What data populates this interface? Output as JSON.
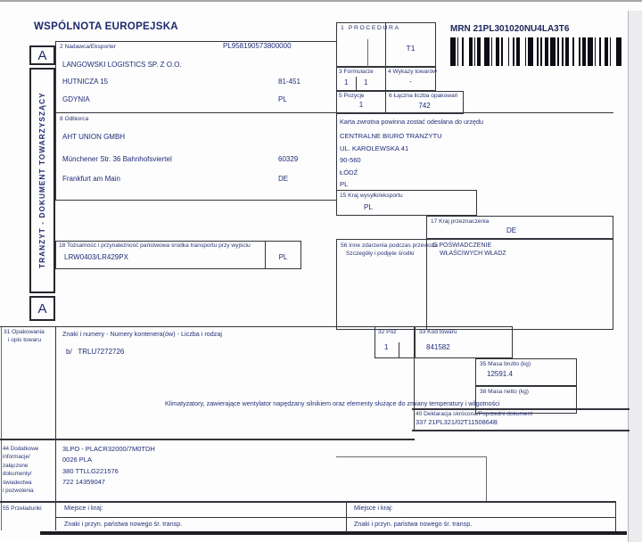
{
  "page": {
    "community_title": "WSPÓLNOTA EUROPEJSKA"
  },
  "sidebar": {
    "a_top": "A",
    "title": "TRANZYT - DOKUMENT TOWARZYSZĄCY",
    "a_bottom": "A"
  },
  "mrn": {
    "label": "MRN",
    "value": "21PL301020NU4LA3T6"
  },
  "box1": {
    "label": "1 PROCEDURA",
    "value": "T1"
  },
  "box2": {
    "label": "2 Nadawca/Eksporter",
    "eori": "PL958190573800000",
    "name": "LANGOWSKI LOGISTICS SP. Z O.O.",
    "street": "HUTNICZA 15",
    "postal": "81-451",
    "city": "GDYNIA",
    "country": "PL"
  },
  "box3": {
    "label": "3 Formularze",
    "value1": "1",
    "value2": "1"
  },
  "box4": {
    "label": "4 Wykazy towarów",
    "value": "-"
  },
  "box5": {
    "label": "5 Pozycje",
    "value": "1"
  },
  "box6": {
    "label": "6 Łączna liczba opakowań",
    "value": "742"
  },
  "box8": {
    "label": "8 Odbiorca",
    "name": "AHT UNION GMBH",
    "street": "Münchener Str. 36 Bahnhofsviertel",
    "postal": "60329",
    "city": "Frankfurt am Main",
    "country": "DE"
  },
  "return_office": {
    "note": "Karta zwrotna powinna zostać odesłana do urzędu",
    "line1": "CENTRALNE BIURO TRANZYTU",
    "line2": "UL. KAROLEWSKA 41",
    "line3": "90-560",
    "line4": "ŁÓDŹ",
    "line5": "PL"
  },
  "box15": {
    "label": "15 Kraj wysyłki/eksportu",
    "value": "PL"
  },
  "box17": {
    "label": "17 Kraj przeznaczenia",
    "value": "DE"
  },
  "box18": {
    "label": "18 Tożsamość i przynależność państwowa środka transportu przy wyjściu",
    "value": "LRW0403/LR429PX",
    "country": "PL"
  },
  "box56": {
    "label": "56 Inne zdarzenia podczas przewozu",
    "sublabel": "Szczegóły i podjęte środki"
  },
  "boxG": {
    "label": "G POŚWIADCZENIE",
    "sublabel": "WŁAŚCIWYCH WŁADZ"
  },
  "box31": {
    "label_line1": "31 Opakowania",
    "label_line2": "i opis towaru",
    "header": "Znaki i numery - Numery kontenera(ów) - Liczba i rodzaj",
    "marks": "b/",
    "container": "TRLU7272726",
    "description": "Klimatyzatory, zawierające wentylator napędzany silnikiem oraz elementy służące do zmiany temperatury i wilgotności"
  },
  "box32": {
    "label": "32 Poz",
    "value": "1"
  },
  "box33": {
    "label": "33 Kod towaru",
    "value": "841582"
  },
  "box35": {
    "label": "35 Masa brutto (kg)",
    "value": "12591.4"
  },
  "box38": {
    "label": "38 Masa netto (kg)",
    "value": ""
  },
  "box40": {
    "label": "40 Deklaracja skrócona/Poprzedni dokument",
    "value": "337 21PL321/02T1150864B"
  },
  "box44": {
    "label_line1": "44 Dodatkowe",
    "label_line2": "informacje/",
    "label_line3": "załączone",
    "label_line4": "dokumenty/",
    "label_line5": "świadectwa",
    "label_line6": "i pozwolenia",
    "doc_line1": "3LPO - PLACR32000/7M0TDH",
    "doc_line2": "0026 PLA",
    "doc_line3": "380 TTLLG221576",
    "doc_line4": "722 14359047"
  },
  "box55": {
    "label": "55 Przeładunki",
    "place_label": "Miejsce i kraj:",
    "transport_label": "Znaki i przyn. państwa nowego śr. transp."
  }
}
